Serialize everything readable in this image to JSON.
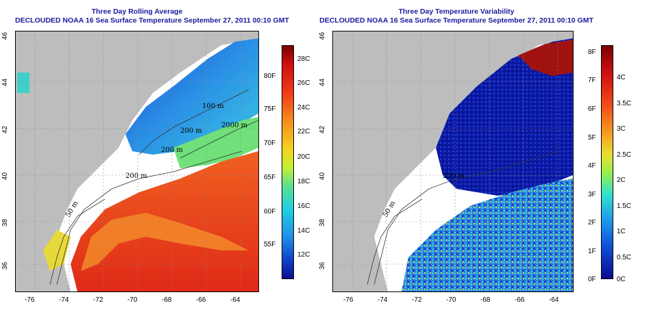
{
  "left_panel": {
    "title_line1": "Three Day Rolling Average",
    "title_line2": "DECLOUDED NOAA 16 Sea Surface Temperature September 27, 2011 00:10 GMT",
    "colorbar_celsius": [
      "28C",
      "26C",
      "24C",
      "22C",
      "20C",
      "18C",
      "16C",
      "14C",
      "12C"
    ],
    "colorbar_fahrenheit": [
      "80F",
      "75F",
      "70F",
      "65F",
      "60F",
      "55F"
    ],
    "contour_labels": [
      "100 m",
      "200 m",
      "2000 m",
      "200 m",
      "200 m",
      "50 m"
    ],
    "colors": {
      "warm": "#e8321e",
      "cool": "#2aa7e8",
      "cold": "#1f5fd6",
      "land": "#bdbdbd",
      "cloud": "#ffffff"
    }
  },
  "right_panel": {
    "title_line1": "Three Day Temperature Variability",
    "title_line2": "DECLOUDED NOAA 16 Sea Surface Temperature September 27, 2011 00:10 GMT",
    "colorbar_celsius": [
      "4C",
      "3.5C",
      "3C",
      "2.5C",
      "2C",
      "1.5C",
      "1C",
      "0.5C",
      "0C"
    ],
    "colorbar_fahrenheit": [
      "8F",
      "7F",
      "6F",
      "5F",
      "4F",
      "3F",
      "2F",
      "1F",
      "0F"
    ],
    "contour_labels": [
      "200 m",
      "50 m"
    ],
    "colors": {
      "low": "#0a1aa8",
      "mid": "#2aa7e8",
      "high": "#b01010",
      "land": "#bdbdbd"
    }
  },
  "axes": {
    "longitude_ticks": [
      "-76",
      "-74",
      "-72",
      "-70",
      "-68",
      "-66",
      "-64"
    ],
    "latitude_ticks": [
      "36",
      "38",
      "40",
      "42",
      "44",
      "46"
    ]
  }
}
